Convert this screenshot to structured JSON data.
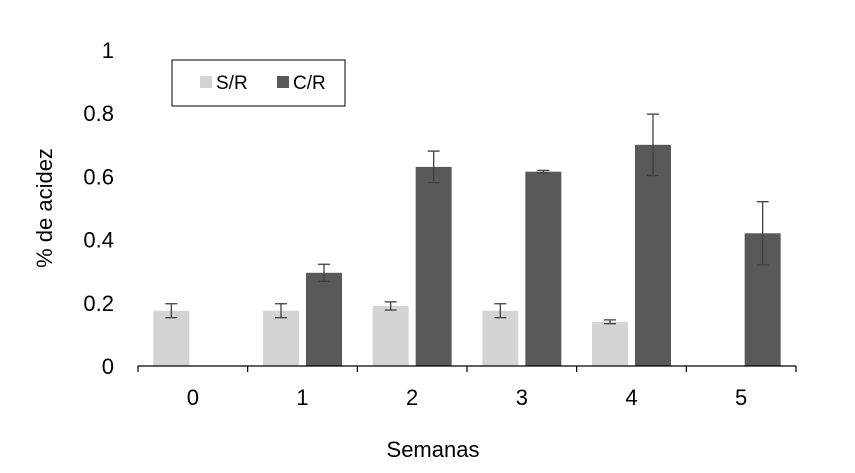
{
  "chart_data": {
    "type": "bar",
    "title": "",
    "xlabel": "Semanas",
    "ylabel": "% de acidez",
    "categories": [
      "0",
      "1",
      "2",
      "3",
      "4",
      "5"
    ],
    "ylim": [
      0,
      1
    ],
    "yticks": [
      "0",
      "0.2",
      "0.4",
      "0.6",
      "0.8",
      "1"
    ],
    "grid": false,
    "legend_position": "top-left",
    "series": [
      {
        "name": "S/R",
        "color": "#d4d4d4",
        "values": [
          0.175,
          0.175,
          0.19,
          0.175,
          0.14,
          null
        ],
        "errors": [
          0.022,
          0.022,
          0.013,
          0.022,
          0.006,
          null
        ]
      },
      {
        "name": "C/R",
        "color": "#595959",
        "values": [
          null,
          0.295,
          0.63,
          0.615,
          0.7,
          0.42
        ],
        "errors": [
          null,
          0.027,
          0.05,
          0.004,
          0.097,
          0.1
        ]
      }
    ]
  }
}
